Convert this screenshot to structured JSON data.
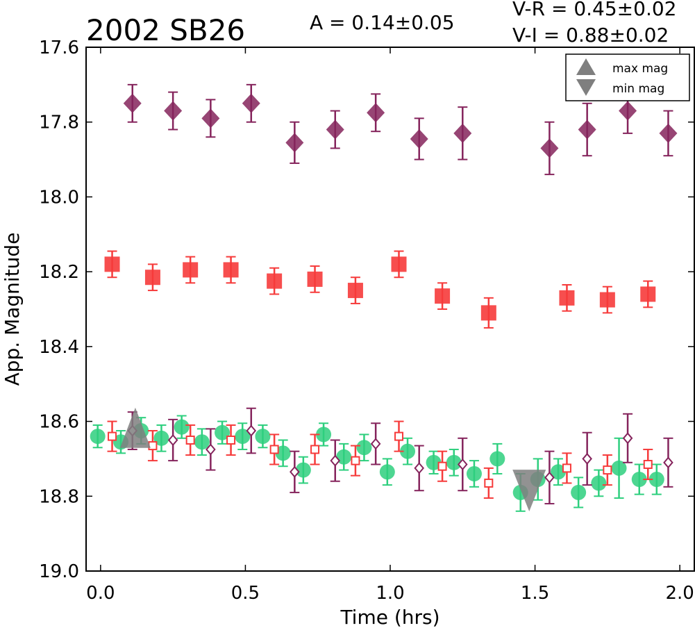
{
  "chart_data": {
    "type": "scatter",
    "title": "2002 SB26",
    "xlabel": "Time (hrs)",
    "ylabel": "App. Magnitude",
    "xlim": [
      -0.05,
      2.05
    ],
    "ylim": [
      17.6,
      19.0
    ],
    "y_inverted": true,
    "xticks": [
      0.0,
      0.5,
      1.0,
      1.5,
      2.0
    ],
    "xtick_labels": [
      "0.0",
      "0.5",
      "1.0",
      "1.5",
      "2.0"
    ],
    "yticks": [
      17.6,
      17.8,
      18.0,
      18.2,
      18.4,
      18.6,
      18.8,
      19.0
    ],
    "ytick_labels": [
      "17.6",
      "17.8",
      "18.0",
      "18.2",
      "18.4",
      "18.6",
      "18.8",
      "19.0"
    ],
    "annotations": {
      "amplitude": "A  = 0.14±0.05",
      "v_r": "V-R = 0.45±0.02",
      "v_i": "V-I  = 0.88±0.02"
    },
    "legend": {
      "placement": "top-right",
      "entries": [
        {
          "label": "max mag",
          "marker": "triangle-up",
          "color": "#7f7f7f"
        },
        {
          "label": "min mag",
          "marker": "triangle-down",
          "color": "#7f7f7f"
        }
      ]
    },
    "series": [
      {
        "marker": "diamond-filled",
        "color": "#85245c",
        "points": [
          {
            "x": 0.11,
            "y": 17.75,
            "err": 0.05
          },
          {
            "x": 0.25,
            "y": 17.77,
            "err": 0.05
          },
          {
            "x": 0.38,
            "y": 17.79,
            "err": 0.05
          },
          {
            "x": 0.52,
            "y": 17.75,
            "err": 0.05
          },
          {
            "x": 0.67,
            "y": 17.855,
            "err": 0.055
          },
          {
            "x": 0.81,
            "y": 17.82,
            "err": 0.05
          },
          {
            "x": 0.95,
            "y": 17.775,
            "err": 0.05
          },
          {
            "x": 1.1,
            "y": 17.845,
            "err": 0.055
          },
          {
            "x": 1.25,
            "y": 17.83,
            "err": 0.07
          },
          {
            "x": 1.55,
            "y": 17.87,
            "err": 0.07
          },
          {
            "x": 1.68,
            "y": 17.82,
            "err": 0.07
          },
          {
            "x": 1.82,
            "y": 17.77,
            "err": 0.06
          },
          {
            "x": 1.96,
            "y": 17.83,
            "err": 0.06
          }
        ]
      },
      {
        "marker": "square-filled",
        "color": "#f63b3b",
        "points": [
          {
            "x": 0.04,
            "y": 18.18,
            "err": 0.035
          },
          {
            "x": 0.18,
            "y": 18.215,
            "err": 0.035
          },
          {
            "x": 0.31,
            "y": 18.195,
            "err": 0.035
          },
          {
            "x": 0.45,
            "y": 18.195,
            "err": 0.035
          },
          {
            "x": 0.6,
            "y": 18.225,
            "err": 0.035
          },
          {
            "x": 0.74,
            "y": 18.22,
            "err": 0.035
          },
          {
            "x": 0.88,
            "y": 18.25,
            "err": 0.035
          },
          {
            "x": 1.03,
            "y": 18.18,
            "err": 0.035
          },
          {
            "x": 1.18,
            "y": 18.265,
            "err": 0.035
          },
          {
            "x": 1.34,
            "y": 18.31,
            "err": 0.04
          },
          {
            "x": 1.61,
            "y": 18.27,
            "err": 0.035
          },
          {
            "x": 1.75,
            "y": 18.275,
            "err": 0.035
          },
          {
            "x": 1.89,
            "y": 18.26,
            "err": 0.035
          }
        ]
      },
      {
        "marker": "circle-filled",
        "color": "#2ecf7e",
        "points": [
          {
            "x": -0.01,
            "y": 18.64,
            "err": 0.03
          },
          {
            "x": 0.07,
            "y": 18.655,
            "err": 0.03
          },
          {
            "x": 0.14,
            "y": 18.625,
            "err": 0.035
          },
          {
            "x": 0.21,
            "y": 18.645,
            "err": 0.035
          },
          {
            "x": 0.28,
            "y": 18.615,
            "err": 0.03
          },
          {
            "x": 0.35,
            "y": 18.655,
            "err": 0.035
          },
          {
            "x": 0.42,
            "y": 18.63,
            "err": 0.03
          },
          {
            "x": 0.49,
            "y": 18.64,
            "err": 0.035
          },
          {
            "x": 0.56,
            "y": 18.64,
            "err": 0.03
          },
          {
            "x": 0.63,
            "y": 18.685,
            "err": 0.035
          },
          {
            "x": 0.7,
            "y": 18.73,
            "err": 0.035
          },
          {
            "x": 0.77,
            "y": 18.635,
            "err": 0.03
          },
          {
            "x": 0.84,
            "y": 18.695,
            "err": 0.035
          },
          {
            "x": 0.91,
            "y": 18.67,
            "err": 0.035
          },
          {
            "x": 0.99,
            "y": 18.735,
            "err": 0.035
          },
          {
            "x": 1.06,
            "y": 18.68,
            "err": 0.035
          },
          {
            "x": 1.15,
            "y": 18.71,
            "err": 0.03
          },
          {
            "x": 1.22,
            "y": 18.71,
            "err": 0.035
          },
          {
            "x": 1.29,
            "y": 18.74,
            "err": 0.035
          },
          {
            "x": 1.37,
            "y": 18.7,
            "err": 0.04
          },
          {
            "x": 1.45,
            "y": 18.79,
            "err": 0.05
          },
          {
            "x": 1.51,
            "y": 18.755,
            "err": 0.055
          },
          {
            "x": 1.58,
            "y": 18.735,
            "err": 0.035
          },
          {
            "x": 1.65,
            "y": 18.79,
            "err": 0.04
          },
          {
            "x": 1.72,
            "y": 18.765,
            "err": 0.035
          },
          {
            "x": 1.79,
            "y": 18.725,
            "err": 0.08
          },
          {
            "x": 1.86,
            "y": 18.755,
            "err": 0.04
          },
          {
            "x": 1.92,
            "y": 18.755,
            "err": 0.04
          }
        ]
      },
      {
        "marker": "square-open",
        "color": "#f63b3b",
        "points": [
          {
            "x": 0.04,
            "y": 18.64,
            "err": 0.04
          },
          {
            "x": 0.18,
            "y": 18.665,
            "err": 0.04
          },
          {
            "x": 0.31,
            "y": 18.65,
            "err": 0.04
          },
          {
            "x": 0.45,
            "y": 18.65,
            "err": 0.04
          },
          {
            "x": 0.6,
            "y": 18.675,
            "err": 0.04
          },
          {
            "x": 0.74,
            "y": 18.675,
            "err": 0.04
          },
          {
            "x": 0.88,
            "y": 18.705,
            "err": 0.04
          },
          {
            "x": 1.03,
            "y": 18.64,
            "err": 0.04
          },
          {
            "x": 1.18,
            "y": 18.72,
            "err": 0.04
          },
          {
            "x": 1.34,
            "y": 18.765,
            "err": 0.04
          },
          {
            "x": 1.61,
            "y": 18.725,
            "err": 0.04
          },
          {
            "x": 1.75,
            "y": 18.73,
            "err": 0.04
          },
          {
            "x": 1.89,
            "y": 18.715,
            "err": 0.04
          }
        ]
      },
      {
        "marker": "diamond-open",
        "color": "#85245c",
        "points": [
          {
            "x": 0.11,
            "y": 18.625,
            "err": 0.05
          },
          {
            "x": 0.25,
            "y": 18.65,
            "err": 0.055
          },
          {
            "x": 0.38,
            "y": 18.675,
            "err": 0.055
          },
          {
            "x": 0.52,
            "y": 18.625,
            "err": 0.06
          },
          {
            "x": 0.67,
            "y": 18.735,
            "err": 0.055
          },
          {
            "x": 0.81,
            "y": 18.705,
            "err": 0.055
          },
          {
            "x": 0.95,
            "y": 18.66,
            "err": 0.055
          },
          {
            "x": 1.1,
            "y": 18.725,
            "err": 0.06
          },
          {
            "x": 1.25,
            "y": 18.715,
            "err": 0.07
          },
          {
            "x": 1.55,
            "y": 18.75,
            "err": 0.07
          },
          {
            "x": 1.68,
            "y": 18.7,
            "err": 0.07
          },
          {
            "x": 1.82,
            "y": 18.645,
            "err": 0.065
          },
          {
            "x": 1.96,
            "y": 18.71,
            "err": 0.065
          }
        ]
      },
      {
        "marker": "triangle-up",
        "color": "#7f7f7f",
        "legend_label": "max mag",
        "points": [
          {
            "x": 0.12,
            "y": 18.63,
            "err": 0
          }
        ]
      },
      {
        "marker": "triangle-down",
        "color": "#7f7f7f",
        "legend_label": "min mag",
        "points": [
          {
            "x": 1.48,
            "y": 18.77,
            "err": 0
          }
        ]
      }
    ]
  }
}
